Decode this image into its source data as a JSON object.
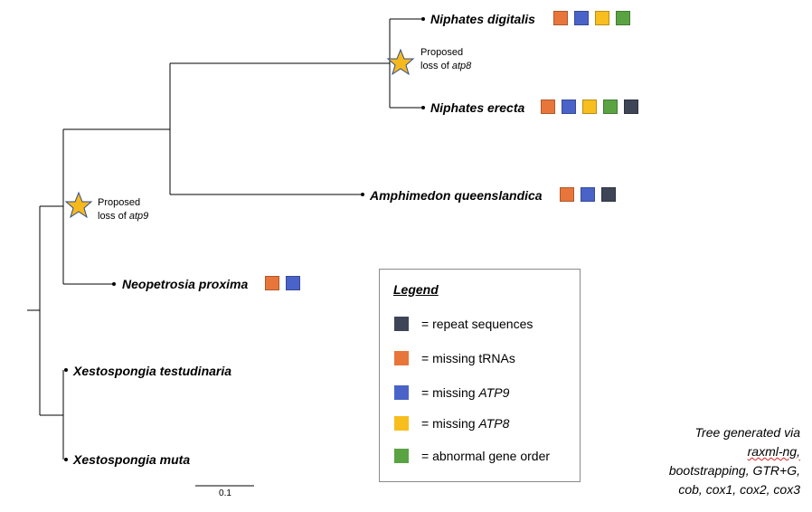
{
  "tree": {
    "taxa": [
      {
        "id": "niphates-digitalis",
        "label": "Niphates digitalis",
        "markers": [
          "missing_trnas",
          "missing_atp9",
          "missing_atp8",
          "abnormal_gene_order"
        ]
      },
      {
        "id": "niphates-erecta",
        "label": "Niphates erecta",
        "markers": [
          "missing_trnas",
          "missing_atp9",
          "missing_atp8",
          "abnormal_gene_order",
          "repeat_sequences"
        ]
      },
      {
        "id": "amphimedon-queenslandica",
        "label": "Amphimedon queenslandica",
        "markers": [
          "missing_trnas",
          "missing_atp9",
          "repeat_sequences"
        ]
      },
      {
        "id": "neopetrosia-proxima",
        "label": "Neopetrosia proxima",
        "markers": [
          "missing_trnas",
          "missing_atp9"
        ]
      },
      {
        "id": "xestospongia-testudinaria",
        "label": "Xestospongia testudinaria",
        "markers": []
      },
      {
        "id": "xestospongia-muta",
        "label": "Xestospongia muta",
        "markers": []
      }
    ],
    "events": [
      {
        "id": "loss-atp8",
        "line1": "Proposed",
        "line2_prefix": "loss of ",
        "gene": "atp8"
      },
      {
        "id": "loss-atp9",
        "line1": "Proposed",
        "line2_prefix": "loss of ",
        "gene": "atp9"
      }
    ],
    "scale_bar_label": "0.1"
  },
  "legend": {
    "title": "Legend",
    "items": [
      {
        "key": "repeat_sequences",
        "prefix": "= repeat sequences",
        "italic": "",
        "color": "#3d4556"
      },
      {
        "key": "missing_trnas",
        "prefix": "= missing tRNAs",
        "italic": "",
        "color": "#e8763a"
      },
      {
        "key": "missing_atp9",
        "prefix": "= missing ",
        "italic": "ATP9",
        "color": "#4a63c8"
      },
      {
        "key": "missing_atp8",
        "prefix": "= missing ",
        "italic": "ATP8",
        "color": "#f7be1e"
      },
      {
        "key": "abnormal_gene_order",
        "prefix": "= abnormal gene order",
        "italic": "",
        "color": "#5aa342"
      }
    ]
  },
  "credit": {
    "line1": "Tree generated via",
    "line2": "raxml-ng,",
    "line3": "bootstrapping, GTR+G,",
    "line4": "cob, cox1, cox2, cox3"
  },
  "colors": {
    "star_fill": "#f6b91d",
    "star_stroke": "#2f4c8a",
    "branch": "#000000"
  }
}
